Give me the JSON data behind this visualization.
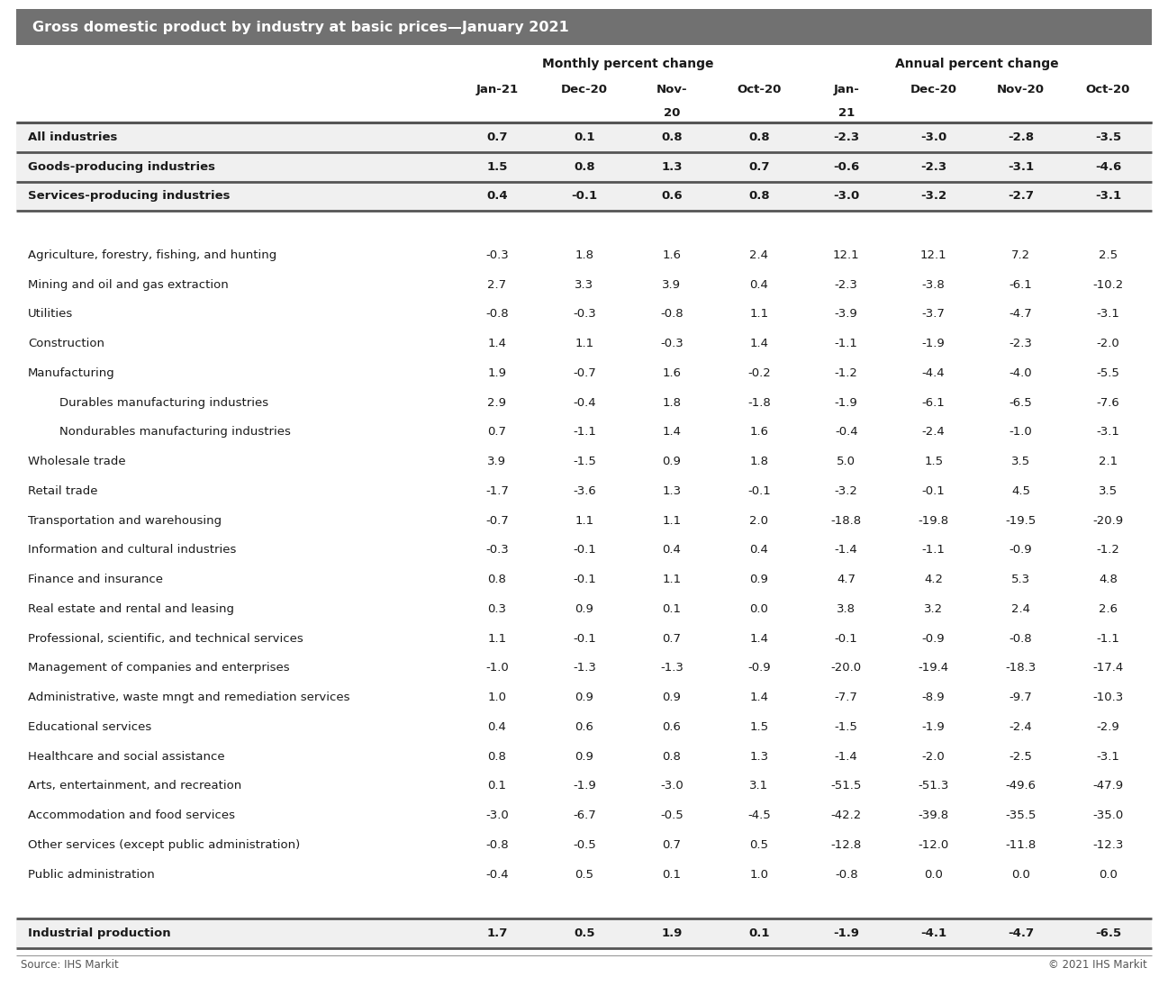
{
  "title": "Gross domestic product by industry at basic prices—January 2021",
  "header_monthly": "Monthly percent change",
  "header_annual": "Annual percent change",
  "col_headers_line1": [
    "Jan-21",
    "Dec-20",
    "Nov-",
    "Oct-20",
    "Jan-",
    "Dec-20",
    "Nov-20",
    "Oct-20"
  ],
  "col_headers_line2": [
    "",
    "",
    "20",
    "",
    "21",
    "",
    "",
    ""
  ],
  "rows": [
    {
      "label": "All industries",
      "bold": true,
      "indent": 0,
      "separator_above": true,
      "separator_below": true,
      "values": [
        0.7,
        0.1,
        0.8,
        0.8,
        -2.3,
        -3.0,
        -2.8,
        -3.5
      ]
    },
    {
      "label": "Goods-producing industries",
      "bold": true,
      "indent": 0,
      "separator_above": false,
      "separator_below": true,
      "values": [
        1.5,
        0.8,
        1.3,
        0.7,
        -0.6,
        -2.3,
        -3.1,
        -4.6
      ]
    },
    {
      "label": "Services-producing industries",
      "bold": true,
      "indent": 0,
      "separator_above": false,
      "separator_below": true,
      "values": [
        0.4,
        -0.1,
        0.6,
        0.8,
        -3.0,
        -3.2,
        -2.7,
        -3.1
      ]
    },
    {
      "label": "",
      "bold": false,
      "indent": 0,
      "separator_above": false,
      "separator_below": false,
      "values": [
        null,
        null,
        null,
        null,
        null,
        null,
        null,
        null
      ]
    },
    {
      "label": "Agriculture, forestry, fishing, and hunting",
      "bold": false,
      "indent": 0,
      "separator_above": false,
      "separator_below": false,
      "values": [
        -0.3,
        1.8,
        1.6,
        2.4,
        12.1,
        12.1,
        7.2,
        2.5
      ]
    },
    {
      "label": "Mining and oil and gas extraction",
      "bold": false,
      "indent": 0,
      "separator_above": false,
      "separator_below": false,
      "values": [
        2.7,
        3.3,
        3.9,
        0.4,
        -2.3,
        -3.8,
        -6.1,
        -10.2
      ]
    },
    {
      "label": "Utilities",
      "bold": false,
      "indent": 0,
      "separator_above": false,
      "separator_below": false,
      "values": [
        -0.8,
        -0.3,
        -0.8,
        1.1,
        -3.9,
        -3.7,
        -4.7,
        -3.1
      ]
    },
    {
      "label": "Construction",
      "bold": false,
      "indent": 0,
      "separator_above": false,
      "separator_below": false,
      "values": [
        1.4,
        1.1,
        -0.3,
        1.4,
        -1.1,
        -1.9,
        -2.3,
        -2.0
      ]
    },
    {
      "label": "Manufacturing",
      "bold": false,
      "indent": 0,
      "separator_above": false,
      "separator_below": false,
      "values": [
        1.9,
        -0.7,
        1.6,
        -0.2,
        -1.2,
        -4.4,
        -4.0,
        -5.5
      ]
    },
    {
      "label": "Durables manufacturing industries",
      "bold": false,
      "indent": 1,
      "separator_above": false,
      "separator_below": false,
      "values": [
        2.9,
        -0.4,
        1.8,
        -1.8,
        -1.9,
        -6.1,
        -6.5,
        -7.6
      ]
    },
    {
      "label": "Nondurables manufacturing industries",
      "bold": false,
      "indent": 1,
      "separator_above": false,
      "separator_below": false,
      "values": [
        0.7,
        -1.1,
        1.4,
        1.6,
        -0.4,
        -2.4,
        -1.0,
        -3.1
      ]
    },
    {
      "label": "Wholesale trade",
      "bold": false,
      "indent": 0,
      "separator_above": false,
      "separator_below": false,
      "values": [
        3.9,
        -1.5,
        0.9,
        1.8,
        5.0,
        1.5,
        3.5,
        2.1
      ]
    },
    {
      "label": "Retail trade",
      "bold": false,
      "indent": 0,
      "separator_above": false,
      "separator_below": false,
      "values": [
        -1.7,
        -3.6,
        1.3,
        -0.1,
        -3.2,
        -0.1,
        4.5,
        3.5
      ]
    },
    {
      "label": "Transportation and warehousing",
      "bold": false,
      "indent": 0,
      "separator_above": false,
      "separator_below": false,
      "values": [
        -0.7,
        1.1,
        1.1,
        2.0,
        -18.8,
        -19.8,
        -19.5,
        -20.9
      ]
    },
    {
      "label": "Information and cultural industries",
      "bold": false,
      "indent": 0,
      "separator_above": false,
      "separator_below": false,
      "values": [
        -0.3,
        -0.1,
        0.4,
        0.4,
        -1.4,
        -1.1,
        -0.9,
        -1.2
      ]
    },
    {
      "label": "Finance and insurance",
      "bold": false,
      "indent": 0,
      "separator_above": false,
      "separator_below": false,
      "values": [
        0.8,
        -0.1,
        1.1,
        0.9,
        4.7,
        4.2,
        5.3,
        4.8
      ]
    },
    {
      "label": "Real estate and rental and leasing",
      "bold": false,
      "indent": 0,
      "separator_above": false,
      "separator_below": false,
      "values": [
        0.3,
        0.9,
        0.1,
        0.0,
        3.8,
        3.2,
        2.4,
        2.6
      ]
    },
    {
      "label": "Professional, scientific, and technical services",
      "bold": false,
      "indent": 0,
      "separator_above": false,
      "separator_below": false,
      "values": [
        1.1,
        -0.1,
        0.7,
        1.4,
        -0.1,
        -0.9,
        -0.8,
        -1.1
      ]
    },
    {
      "label": "Management of companies and enterprises",
      "bold": false,
      "indent": 0,
      "separator_above": false,
      "separator_below": false,
      "values": [
        -1.0,
        -1.3,
        -1.3,
        -0.9,
        -20.0,
        -19.4,
        -18.3,
        -17.4
      ]
    },
    {
      "label": "Administrative, waste mngt and remediation services",
      "bold": false,
      "indent": 0,
      "separator_above": false,
      "separator_below": false,
      "values": [
        1.0,
        0.9,
        0.9,
        1.4,
        -7.7,
        -8.9,
        -9.7,
        -10.3
      ]
    },
    {
      "label": "Educational services",
      "bold": false,
      "indent": 0,
      "separator_above": false,
      "separator_below": false,
      "values": [
        0.4,
        0.6,
        0.6,
        1.5,
        -1.5,
        -1.9,
        -2.4,
        -2.9
      ]
    },
    {
      "label": "Healthcare and social assistance",
      "bold": false,
      "indent": 0,
      "separator_above": false,
      "separator_below": false,
      "values": [
        0.8,
        0.9,
        0.8,
        1.3,
        -1.4,
        -2.0,
        -2.5,
        -3.1
      ]
    },
    {
      "label": "Arts, entertainment, and recreation",
      "bold": false,
      "indent": 0,
      "separator_above": false,
      "separator_below": false,
      "values": [
        0.1,
        -1.9,
        -3.0,
        3.1,
        -51.5,
        -51.3,
        -49.6,
        -47.9
      ]
    },
    {
      "label": "Accommodation and food services",
      "bold": false,
      "indent": 0,
      "separator_above": false,
      "separator_below": false,
      "values": [
        -3.0,
        -6.7,
        -0.5,
        -4.5,
        -42.2,
        -39.8,
        -35.5,
        -35.0
      ]
    },
    {
      "label": "Other services (except public administration)",
      "bold": false,
      "indent": 0,
      "separator_above": false,
      "separator_below": false,
      "values": [
        -0.8,
        -0.5,
        0.7,
        0.5,
        -12.8,
        -12.0,
        -11.8,
        -12.3
      ]
    },
    {
      "label": "Public administration",
      "bold": false,
      "indent": 0,
      "separator_above": false,
      "separator_below": false,
      "values": [
        -0.4,
        0.5,
        0.1,
        1.0,
        -0.8,
        0.0,
        0.0,
        0.0
      ]
    },
    {
      "label": "",
      "bold": false,
      "indent": 0,
      "separator_above": false,
      "separator_below": false,
      "values": [
        null,
        null,
        null,
        null,
        null,
        null,
        null,
        null
      ]
    },
    {
      "label": "Industrial production",
      "bold": true,
      "indent": 0,
      "separator_above": true,
      "separator_below": true,
      "values": [
        1.7,
        0.5,
        1.9,
        0.1,
        -1.9,
        -4.1,
        -4.7,
        -6.5
      ]
    }
  ],
  "footer_left": "Source: IHS Markit",
  "footer_right": "© 2021 IHS Markit",
  "title_bg_color": "#717171",
  "title_text_color": "#ffffff",
  "text_color": "#1a1a1a",
  "bold_row_bg_color": "#f0f0f0",
  "separator_thick_color": "#555555",
  "separator_thin_color": "#aaaaaa"
}
